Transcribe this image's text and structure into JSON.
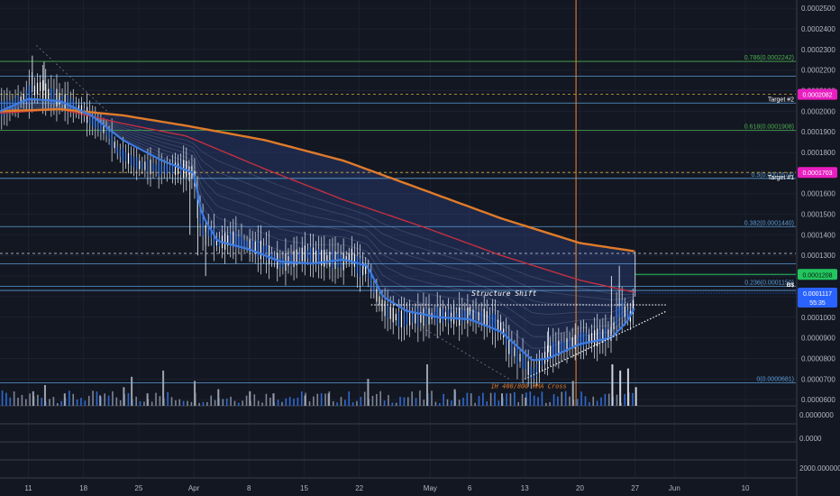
{
  "chart_data": {
    "type": "candlestick",
    "y_ticks": [
      "0.0002500",
      "0.0002400",
      "0.0002300",
      "0.0002200",
      "0.0002100",
      "0.0002000",
      "0.0001900",
      "0.0001800",
      "0.0001700",
      "0.0001600",
      "0.0001500",
      "0.0001400",
      "0.0001300",
      "0.0001200",
      "0.0001100",
      "0.0001000",
      "0.0000900",
      "0.0000800",
      "0.0000700",
      "0.0000600"
    ],
    "ylim": [
      5.7e-05,
      0.000254
    ],
    "sub_ticks": [
      "0.0000000",
      "0.0000",
      "2000.0000000"
    ],
    "x_ticks": [
      "11",
      "18",
      "25",
      "Apr",
      "8",
      "15",
      "22",
      "May",
      "6",
      "13",
      "20",
      "27",
      "Jun",
      "10"
    ],
    "x_days": [
      10,
      17,
      24,
      31,
      38,
      45,
      52,
      61,
      66,
      73,
      80,
      87,
      92,
      101
    ],
    "xlim": [
      6.4,
      107.4
    ],
    "price_path_days": [
      6.4,
      8,
      10,
      11.5,
      12.5,
      14,
      17,
      18,
      20,
      21.5,
      24,
      27,
      30,
      31,
      32,
      33,
      34,
      36,
      38,
      40,
      42,
      43.5,
      45,
      47,
      50,
      51,
      52,
      53,
      54,
      55,
      57,
      60,
      62,
      64,
      66,
      68,
      70,
      71,
      73,
      74,
      75,
      76,
      78,
      80,
      82,
      84,
      85,
      86.5,
      87
    ],
    "price_path": [
      0.000201,
      0.000203,
      0.000208,
      0.000212,
      0.000208,
      0.000206,
      0.0002,
      0.000196,
      0.00019,
      0.00018,
      0.000174,
      0.000172,
      0.000172,
      0.00017,
      0.000144,
      0.000142,
      0.000136,
      0.000138,
      0.000135,
      0.000132,
      0.000126,
      0.000128,
      0.000131,
      0.000129,
      0.000127,
      0.00013,
      0.000124,
      0.000123,
      0.000112,
      0.000105,
      9.9e-05,
      0.0001,
      0.000101,
      0.0001,
      0.000101,
      0.0001,
      9.5e-05,
      8.6e-05,
      7.8e-05,
      7.2e-05,
      7.7e-05,
      8.3e-05,
      8.6e-05,
      8.9e-05,
      9e-05,
      9.2e-05,
      0.000105,
      0.0001,
      0.00011
    ],
    "wick_highs": [
      [
        10.5,
        0.000227
      ],
      [
        12,
        0.000224
      ],
      [
        32.5,
        0.000135
      ],
      [
        52.5,
        0.000125
      ],
      [
        64,
        0.000106
      ],
      [
        66,
        0.000105
      ],
      [
        76,
        9.5e-05
      ],
      [
        84,
        0.00012
      ],
      [
        85,
        0.000125
      ],
      [
        87,
        0.000132
      ]
    ],
    "wick_lows": [
      [
        30.5,
        0.00014
      ],
      [
        31.5,
        0.00013
      ],
      [
        32.5,
        0.00012
      ]
    ],
    "ma_blue_days": [
      6.4,
      10,
      14,
      18,
      22,
      27,
      31,
      32,
      34,
      38,
      42,
      46,
      50,
      53,
      55,
      58,
      62,
      66,
      70,
      72,
      74,
      76,
      80,
      84,
      86,
      87
    ],
    "ma_blue": [
      0.0002,
      0.000206,
      0.000205,
      0.000198,
      0.000186,
      0.000176,
      0.00017,
      0.00015,
      0.000137,
      0.000133,
      0.000127,
      0.000126,
      0.000128,
      0.000125,
      0.00011,
      0.000103,
      0.0001,
      9.9e-05,
      9.3e-05,
      8.6e-05,
      7.9e-05,
      8e-05,
      8.7e-05,
      9e-05,
      9.8e-05,
      0.000105
    ],
    "ma_red_days": [
      6.4,
      14,
      22,
      30,
      40,
      50,
      60,
      70,
      80,
      87
    ],
    "ma_red": [
      0.000199,
      0.000201,
      0.000194,
      0.000188,
      0.000172,
      0.000157,
      0.000144,
      0.00013,
      0.000118,
      0.000112
    ],
    "ma_orange_days": [
      6.4,
      14,
      22,
      30,
      40,
      50,
      60,
      70,
      80,
      87
    ],
    "ma_orange": [
      0.0002,
      0.000201,
      0.000198,
      0.000193,
      0.000186,
      0.000176,
      0.000162,
      0.000148,
      0.000136,
      0.000132
    ],
    "fib_levels": [
      {
        "label": "0.786(0.0002242)",
        "value": 0.0002242,
        "color": "#4caf50"
      },
      {
        "label": "0.618(0.0001908)",
        "value": 0.0001908,
        "color": "#4caf50"
      },
      {
        "label": "0.5(0.0001674)",
        "value": 0.0001674,
        "color": "#5b9bd5"
      },
      {
        "label": "0.382(0.0001440)",
        "value": 0.000144,
        "color": "#5b9bd5"
      },
      {
        "label": "0.236(0.0001150)",
        "value": 0.000115,
        "color": "#5b9bd5"
      },
      {
        "label": "0(0.0000681)",
        "value": 6.81e-05,
        "color": "#5b9bd5"
      }
    ],
    "extra_lines": [
      0.000217,
      0.000204,
      0.000126,
      0.000113
    ],
    "targets": [
      {
        "label": "Target #2",
        "value": 0.0002082,
        "price_label": "0.0002082"
      },
      {
        "label": "Target #1",
        "value": 0.0001703,
        "price_label": "0.0001703"
      }
    ],
    "white_dashed": 0.000131,
    "current_price": {
      "value": 0.0001117,
      "price_label": "0.0001117",
      "countdown": "55:35"
    },
    "green_marker": {
      "value": 0.0001208,
      "price_label": "0.0001208"
    },
    "b_marker": {
      "label": "B$",
      "value": 0.000116
    },
    "structure_shift": {
      "label": "Structure Shift",
      "value": 0.000106,
      "start_day": 53.5,
      "end_day": 91
    },
    "cross": {
      "label": "1H 400/800 HMA Cross",
      "value": 6.55e-05,
      "day": 73.5
    },
    "triangle": {
      "start_day": 73,
      "start_value": 7e-05,
      "end_day": 91,
      "end_value": 0.000103
    },
    "vertical_line_day": 79.5,
    "volumes": [
      [
        10.5,
        0.35
      ],
      [
        12,
        0.5
      ],
      [
        14.5,
        0.3
      ],
      [
        19,
        0.25
      ],
      [
        22,
        0.45
      ],
      [
        23,
        0.7
      ],
      [
        25,
        0.3
      ],
      [
        27,
        0.85
      ],
      [
        31,
        0.6
      ],
      [
        34,
        0.4
      ],
      [
        38,
        0.35
      ],
      [
        41,
        0.3
      ],
      [
        45,
        0.25
      ],
      [
        48,
        0.3
      ],
      [
        53,
        0.65
      ],
      [
        60.5,
        1.0
      ],
      [
        64,
        0.4
      ],
      [
        70,
        0.3
      ],
      [
        73,
        0.2
      ],
      [
        79,
        0.6
      ],
      [
        84,
        1.0
      ],
      [
        85,
        0.85
      ],
      [
        86,
        0.9
      ],
      [
        87,
        0.45
      ]
    ]
  }
}
